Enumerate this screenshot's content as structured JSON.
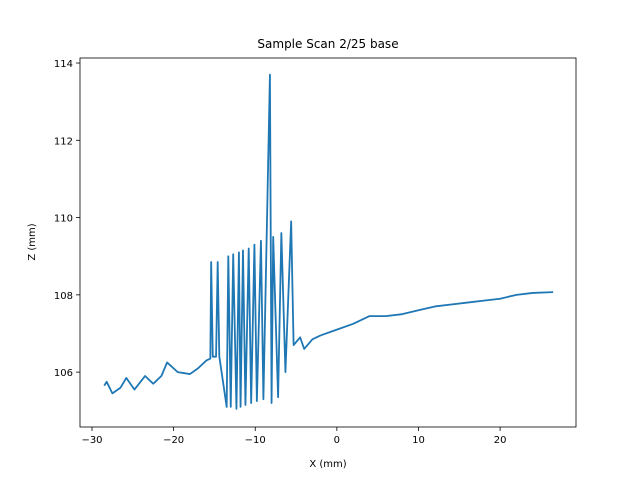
{
  "chart_data": {
    "type": "line",
    "title": "Sample Scan 2/25 base",
    "x_label": "X (mm)",
    "y_label": "Z (mm)",
    "xlim": [
      -31.47,
      29.3
    ],
    "ylim": [
      104.58,
      114.13
    ],
    "xticks": [
      {
        "value": -30,
        "label": "−30"
      },
      {
        "value": -20,
        "label": "−20"
      },
      {
        "value": -10,
        "label": "−10"
      },
      0,
      10,
      20
    ],
    "yticks": [
      106,
      108,
      110,
      112,
      114
    ],
    "series": [
      {
        "color": "#1f77b4",
        "x": [
          -28.5,
          -28.2,
          -27.5,
          -26.5,
          -25.8,
          -24.8,
          -23.5,
          -22.5,
          -21.5,
          -20.8,
          -19.5,
          -18,
          -17,
          -16,
          -15.5,
          -15.4,
          -15.2,
          -14.8,
          -14.6,
          -14.4,
          -13.5,
          -13.3,
          -13,
          -12.7,
          -12.3,
          -12,
          -11.8,
          -11.5,
          -11.2,
          -10.8,
          -10.5,
          -10.1,
          -9.8,
          -9.3,
          -9.0,
          -8.2,
          -8.0,
          -7.8,
          -7.2,
          -6.8,
          -6.3,
          -5.6,
          -5.3,
          -4.5,
          -4,
          -3,
          -2,
          0,
          2,
          4,
          6,
          8,
          10,
          12,
          14,
          16,
          18,
          20,
          22,
          24,
          26.5
        ],
        "values": [
          105.65,
          105.75,
          105.45,
          105.6,
          105.85,
          105.55,
          105.9,
          105.7,
          105.9,
          106.25,
          106.0,
          105.95,
          106.1,
          106.3,
          106.35,
          108.85,
          106.4,
          106.4,
          108.85,
          106.4,
          105.1,
          109.0,
          105.1,
          109.05,
          105.05,
          109.1,
          105.1,
          109.15,
          105.15,
          109.2,
          105.2,
          109.3,
          105.25,
          109.4,
          105.3,
          113.7,
          105.2,
          109.5,
          105.35,
          109.6,
          106.0,
          109.9,
          106.7,
          106.9,
          106.6,
          106.85,
          106.95,
          107.1,
          107.25,
          107.45,
          107.45,
          107.5,
          107.6,
          107.7,
          107.75,
          107.8,
          107.85,
          107.9,
          108.0,
          108.05,
          108.07
        ]
      }
    ]
  }
}
